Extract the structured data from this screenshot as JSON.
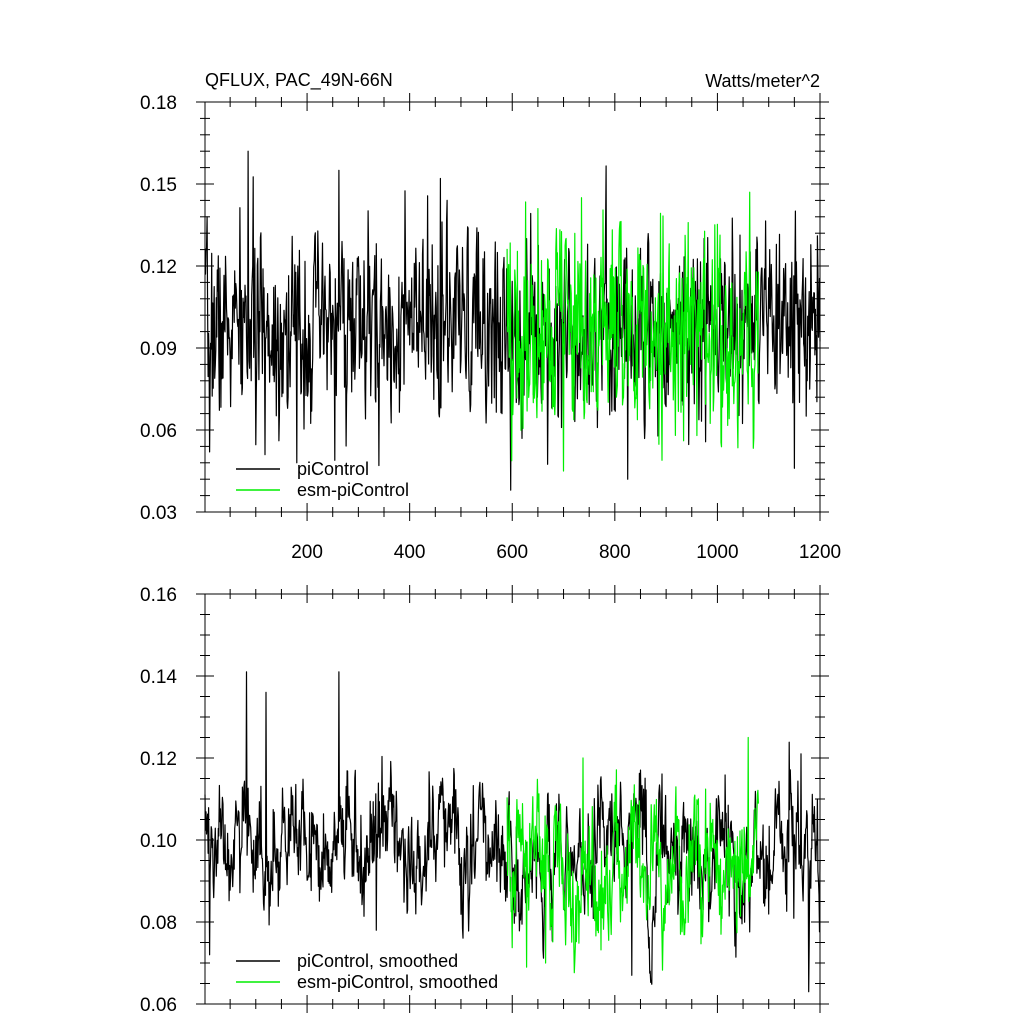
{
  "chart_data": [
    {
      "type": "line",
      "title": "QFLUX, PAC_49N-66N",
      "units": "Watts/meter^2",
      "xlabel": "",
      "ylabel": "",
      "xlim": [
        1,
        1200
      ],
      "ylim": [
        0.03,
        0.18
      ],
      "x_ticks": [
        200,
        400,
        600,
        800,
        1000,
        1200
      ],
      "x_tick_labels": [
        "200",
        "400",
        "600",
        "800",
        "1000",
        "1200"
      ],
      "y_ticks": [
        0.03,
        0.06,
        0.09,
        0.12,
        0.15,
        0.18
      ],
      "y_tick_labels": [
        "0.03",
        "0.06",
        "0.09",
        "0.12",
        "0.15",
        "0.18"
      ],
      "grid": false,
      "legend_position": "bottom-left",
      "series": [
        {
          "name": "piControl",
          "color": "#000000",
          "x_start": 1,
          "x_end": 1200,
          "mean": 0.097,
          "sd": 0.016,
          "noise": "high",
          "seed": 7,
          "markers": [
            [
              5,
              0.138
            ],
            [
              10,
              0.052
            ],
            [
              85,
              0.162
            ],
            [
              180,
              0.048
            ],
            [
              262,
              0.155
            ],
            [
              340,
              0.047
            ],
            [
              460,
              0.152
            ],
            [
              580,
              0.066
            ],
            [
              597,
              0.038
            ],
            [
              825,
              0.042
            ],
            [
              1150,
              0.046
            ],
            [
              1195,
              0.131
            ]
          ]
        },
        {
          "name": "esm-piControl",
          "color": "#00ee00",
          "x_start": 590,
          "x_end": 1080,
          "mean": 0.096,
          "sd": 0.018,
          "noise": "high",
          "seed": 19,
          "markers": [
            [
              650,
              0.141
            ],
            [
              700,
              0.045
            ],
            [
              735,
              0.145
            ],
            [
              1063,
              0.147
            ],
            [
              960,
              0.058
            ]
          ]
        }
      ]
    },
    {
      "type": "line",
      "title": "",
      "xlabel": "",
      "ylabel": "",
      "xlim": [
        1,
        1200
      ],
      "ylim": [
        0.06,
        0.16
      ],
      "x_ticks": [
        200,
        400,
        600,
        800,
        1000,
        1200
      ],
      "y_ticks": [
        0.06,
        0.08,
        0.1,
        0.12,
        0.14,
        0.16
      ],
      "y_tick_labels": [
        "0.06",
        "0.08",
        "0.10",
        "0.12",
        "0.14",
        "0.16"
      ],
      "grid": false,
      "legend_position": "bottom-left",
      "series": [
        {
          "name": "piControl, smoothed",
          "color": "#000000",
          "x_start": 1,
          "x_end": 1200,
          "mean": 0.098,
          "sd": 0.0085,
          "noise": "smooth",
          "seed": 31,
          "markers": [
            [
              10,
              0.072
            ],
            [
              82,
              0.141
            ],
            [
              120,
              0.136
            ],
            [
              262,
              0.141
            ],
            [
              335,
              0.078
            ],
            [
              833,
              0.067
            ],
            [
              1178,
              0.063
            ],
            [
              1163,
              0.121
            ],
            [
              1195,
              0.11
            ]
          ]
        },
        {
          "name": "esm-piControl, smoothed",
          "color": "#00ee00",
          "x_start": 590,
          "x_end": 1080,
          "mean": 0.094,
          "sd": 0.009,
          "noise": "smooth",
          "seed": 43,
          "markers": [
            [
              628,
              0.069
            ],
            [
              665,
              0.07
            ],
            [
              738,
              0.12
            ],
            [
              1060,
              0.125
            ]
          ]
        }
      ]
    }
  ]
}
